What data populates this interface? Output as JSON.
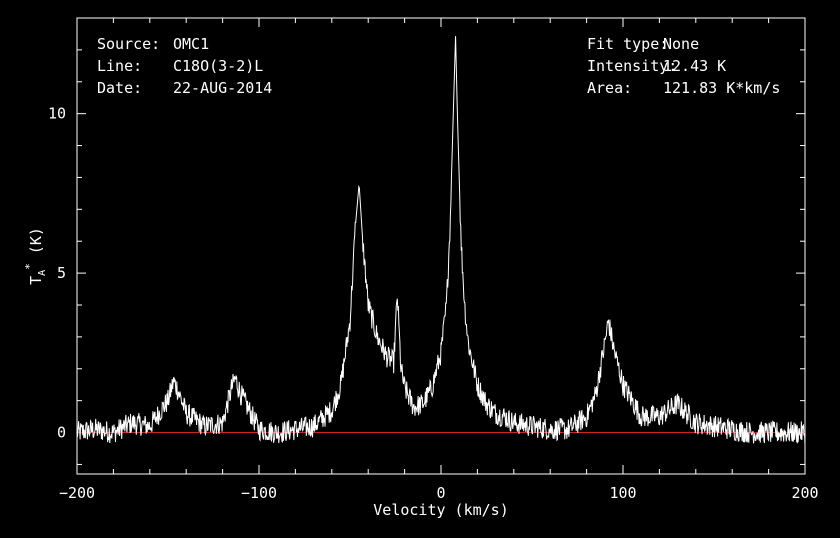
{
  "info_left": [
    {
      "label": "Source:",
      "value": "OMC1"
    },
    {
      "label": "Line:",
      "value": "C18O(3-2)L"
    },
    {
      "label": "Date:",
      "value": "22-AUG-2014"
    }
  ],
  "info_right": [
    {
      "label": "Fit type:",
      "value": "None"
    },
    {
      "label": "Intensity:",
      "value": "12.43 K"
    },
    {
      "label": "Area:",
      "value": "121.83 K*km/s"
    }
  ],
  "chart_data": {
    "type": "line",
    "title": "",
    "xlabel": "Velocity (km/s)",
    "ylabel": "TA* (K)",
    "xlim": [
      -200,
      200
    ],
    "ylim": [
      -1.3,
      13.0
    ],
    "x_ticks": [
      -200,
      -100,
      0,
      100,
      200
    ],
    "y_ticks": [
      0,
      5,
      10
    ],
    "baseline": 0,
    "series": [
      {
        "color": "#ffffff",
        "x": [
          -200,
          -190,
          -180,
          -170,
          -160,
          -150,
          -147,
          -145,
          -140,
          -130,
          -120,
          -115,
          -113,
          -110,
          -100,
          -90,
          -80,
          -70,
          -60,
          -55,
          -50,
          -47,
          -45,
          -43,
          -40,
          -35,
          -30,
          -26,
          -24,
          -22,
          -20,
          -15,
          -10,
          -5,
          0,
          3,
          5,
          7,
          8,
          9,
          11,
          13,
          15,
          20,
          25,
          30,
          35,
          40,
          50,
          60,
          70,
          80,
          85,
          90,
          92,
          95,
          100,
          110,
          120,
          130,
          140,
          150,
          160,
          170,
          180,
          190,
          200
        ],
        "y": [
          0.0,
          0.1,
          0.0,
          0.3,
          0.2,
          1.0,
          1.6,
          1.4,
          0.6,
          0.2,
          0.3,
          1.4,
          1.7,
          1.2,
          0.1,
          0.0,
          0.1,
          0.2,
          0.7,
          1.5,
          3.5,
          6.5,
          7.8,
          6.0,
          4.0,
          3.0,
          2.4,
          2.2,
          4.3,
          2.0,
          1.4,
          0.8,
          0.9,
          1.4,
          2.5,
          4.0,
          6.5,
          10.5,
          12.43,
          10.0,
          6.0,
          4.0,
          2.8,
          1.5,
          0.9,
          0.6,
          0.5,
          0.3,
          0.2,
          0.1,
          0.1,
          0.5,
          1.2,
          2.8,
          3.5,
          2.6,
          1.5,
          0.5,
          0.5,
          0.9,
          0.3,
          0.2,
          0.1,
          0.0,
          0.0,
          0.0,
          0.0
        ]
      }
    ],
    "colors": {
      "background": "#000000",
      "axes": "#ffffff",
      "baseline": "#cc2222",
      "trace": "#ffffff"
    }
  }
}
